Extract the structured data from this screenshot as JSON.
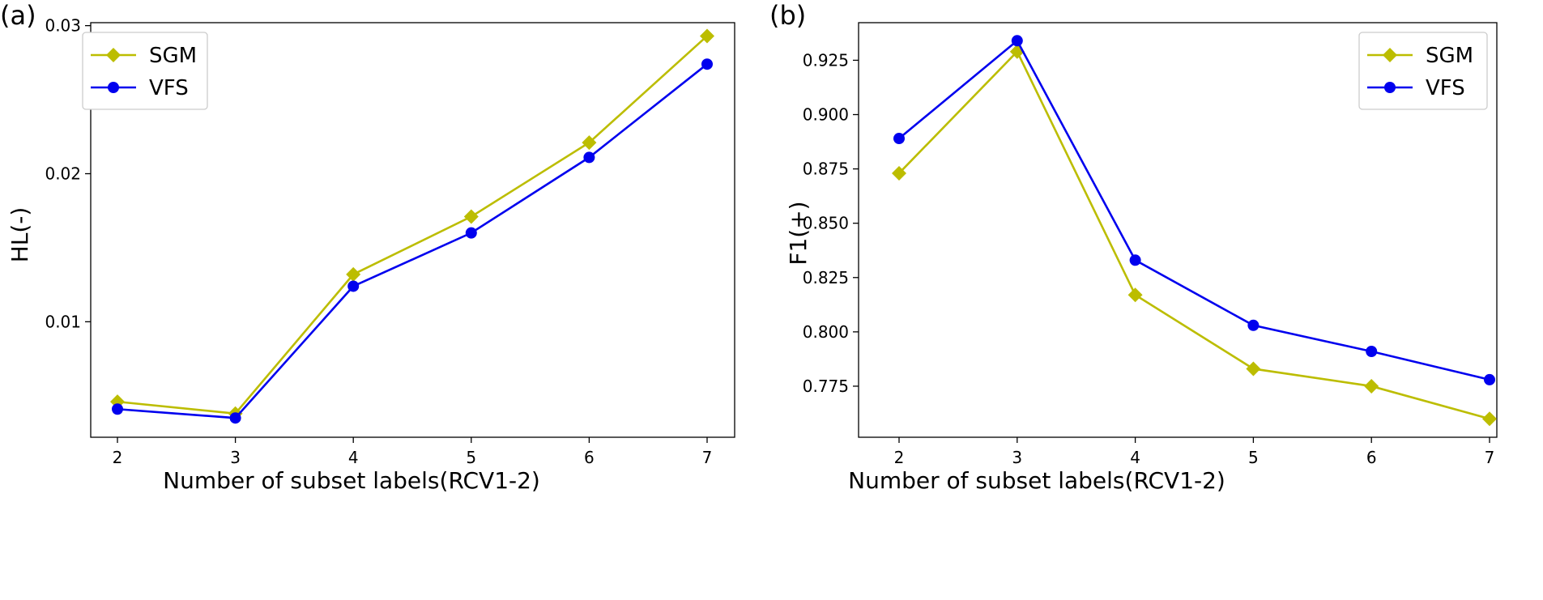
{
  "colors": {
    "sgm": "#bcbd00",
    "vfs": "#0000ee"
  },
  "chart_data": [
    {
      "type": "line",
      "panel_label": "(a)",
      "xlabel": "Number of subset labels(RCV1-2)",
      "ylabel": "HL(-)",
      "categories": [
        2,
        3,
        4,
        5,
        6,
        7
      ],
      "x_ticks": [
        "2",
        "3",
        "4",
        "5",
        "6",
        "7"
      ],
      "y_ticks": [
        {
          "v": 0.01,
          "label": "0.01"
        },
        {
          "v": 0.02,
          "label": "0.02"
        },
        {
          "v": 0.03,
          "label": "0.03"
        }
      ],
      "ylim": [
        0.0022,
        0.0302
      ],
      "legend_position": "top-left",
      "series": [
        {
          "name": "SGM",
          "marker": "diamond",
          "values": [
            0.0046,
            0.0038,
            0.0132,
            0.0171,
            0.0221,
            0.0293
          ]
        },
        {
          "name": "VFS",
          "marker": "circle",
          "values": [
            0.0041,
            0.0035,
            0.0124,
            0.016,
            0.0211,
            0.0274
          ]
        }
      ]
    },
    {
      "type": "line",
      "panel_label": "(b)",
      "xlabel": "Number of subset labels(RCV1-2)",
      "ylabel": "F1(+)",
      "categories": [
        2,
        3,
        4,
        5,
        6,
        7
      ],
      "x_ticks": [
        "2",
        "3",
        "4",
        "5",
        "6",
        "7"
      ],
      "y_ticks": [
        {
          "v": 0.775,
          "label": "0.775"
        },
        {
          "v": 0.8,
          "label": "0.800"
        },
        {
          "v": 0.825,
          "label": "0.825"
        },
        {
          "v": 0.85,
          "label": "0.850"
        },
        {
          "v": 0.875,
          "label": "0.875"
        },
        {
          "v": 0.9,
          "label": "0.900"
        },
        {
          "v": 0.925,
          "label": "0.925"
        }
      ],
      "ylim": [
        0.7515,
        0.9423
      ],
      "legend_position": "top-right",
      "series": [
        {
          "name": "SGM",
          "marker": "diamond",
          "values": [
            0.873,
            0.929,
            0.817,
            0.783,
            0.775,
            0.76
          ]
        },
        {
          "name": "VFS",
          "marker": "circle",
          "values": [
            0.889,
            0.934,
            0.833,
            0.803,
            0.791,
            0.778
          ]
        }
      ]
    }
  ]
}
